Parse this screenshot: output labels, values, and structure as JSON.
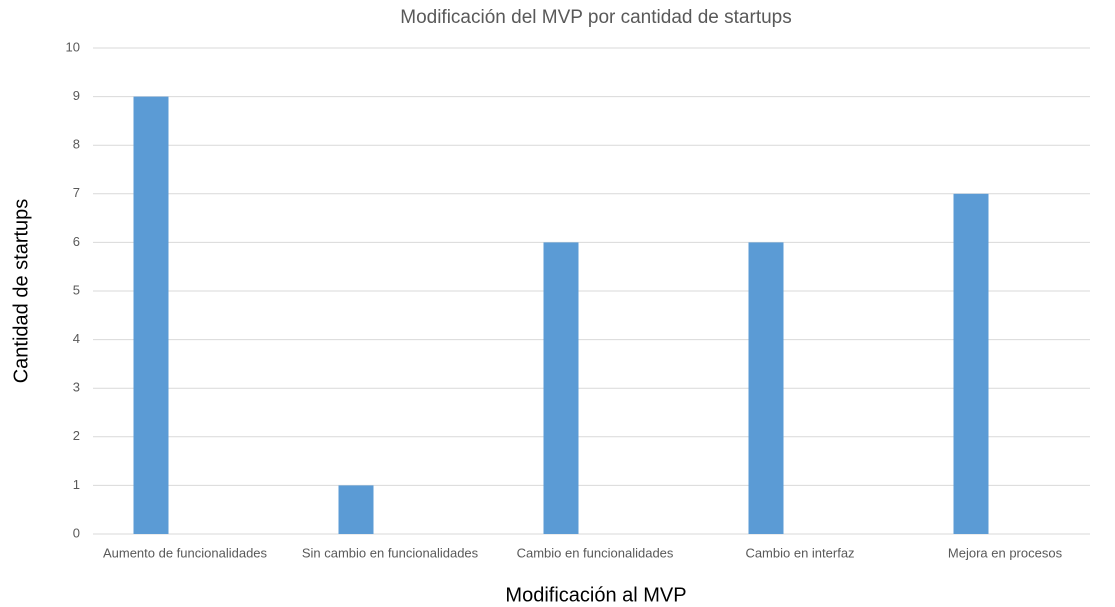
{
  "chart_data": {
    "type": "bar",
    "title": "Modificación del MVP por cantidad de startups",
    "x_label": "Modificación al MVP",
    "y_label": "Cantidad de startups",
    "categories": [
      "Aumento de funcionalidades",
      "Sin cambio en funcionalidades",
      "Cambio en funcionalidades",
      "Cambio en interfaz",
      "Mejora en procesos"
    ],
    "values": [
      9,
      1,
      6,
      6,
      7
    ],
    "color": "#5b9bd5",
    "ylim": [
      0,
      10
    ],
    "yticks": [
      0,
      1,
      2,
      3,
      4,
      5,
      6,
      7,
      8,
      9,
      10
    ],
    "grid": true
  }
}
